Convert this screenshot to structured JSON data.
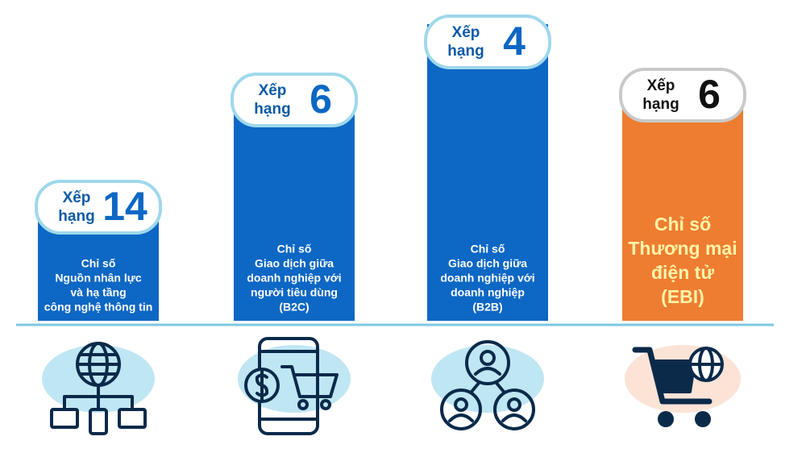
{
  "items": [
    {
      "rank_label": [
        "Xếp",
        "hạng"
      ],
      "rank": 14,
      "description": [
        "Chỉ số",
        "Nguồn nhân lực",
        "và hạ tầng",
        "công nghệ thông tin"
      ]
    },
    {
      "rank_label": [
        "Xếp",
        "hạng"
      ],
      "rank": 6,
      "description": [
        "Chỉ số",
        "Giao dịch giữa",
        "doanh nghiệp với",
        "người tiêu dùng",
        "(B2C)"
      ]
    },
    {
      "rank_label": [
        "Xếp",
        "hạng"
      ],
      "rank": 4,
      "description": [
        "Chỉ số",
        "Giao dịch giữa",
        "doanh nghiệp với",
        "doanh nghiệp",
        "(B2B)"
      ]
    },
    {
      "rank_label": [
        "Xếp",
        "hạng"
      ],
      "rank": 6,
      "description": [
        "Chỉ số",
        "Thương mại",
        "điện tử",
        "(EBI)"
      ]
    }
  ]
}
